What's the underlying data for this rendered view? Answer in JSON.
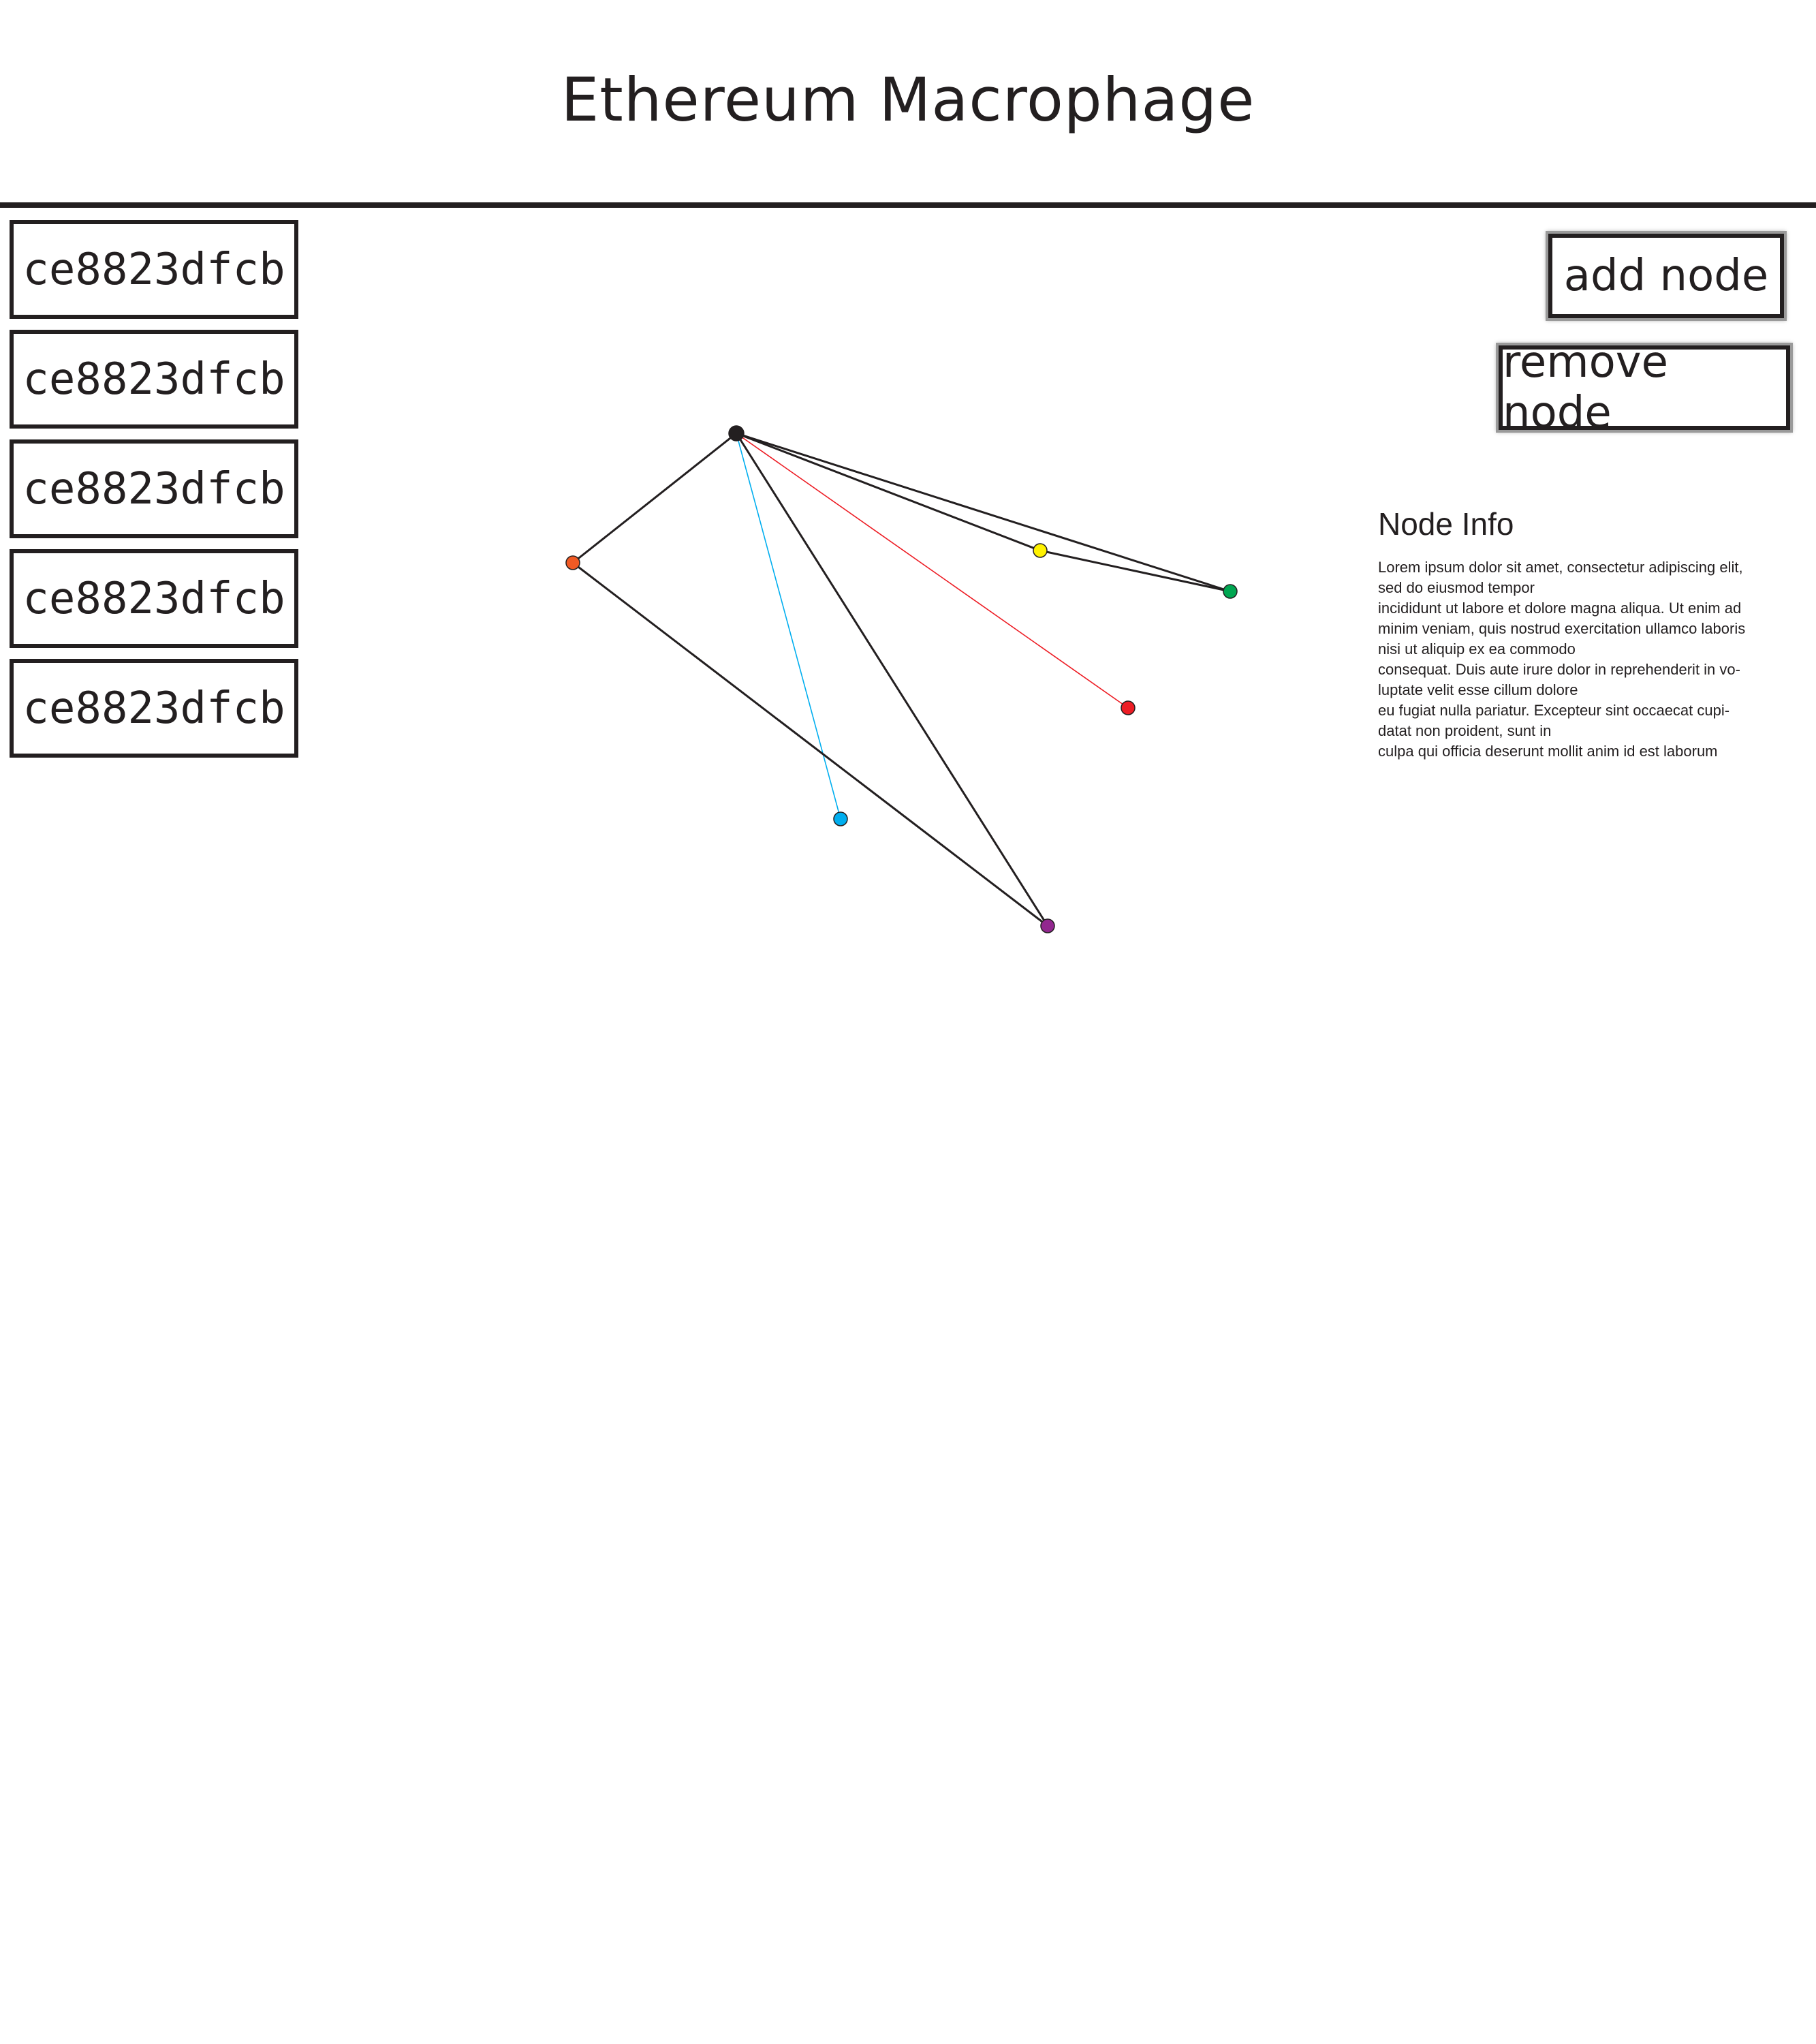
{
  "header": {
    "title": "Ethereum Macrophage"
  },
  "node_list": {
    "items": [
      {
        "label": "ce8823dfcb"
      },
      {
        "label": "ce8823dfcb"
      },
      {
        "label": "ce8823dfcb"
      },
      {
        "label": "ce8823dfcb"
      },
      {
        "label": "ce8823dfcb"
      }
    ]
  },
  "actions": {
    "add_label": "add node",
    "remove_label": "remove node"
  },
  "info": {
    "title": "Node Info",
    "body": "Lorem ipsum dolor sit amet, consectetur adipiscing elit,\nsed do eiusmod tempor\nincididunt ut labore et dolore magna aliqua. Ut enim ad\nminim veniam, quis nostrud exercitation ullamco laboris\nnisi ut aliquip ex ea commodo\nconsequat. Duis aute irure dolor in reprehenderit in vo-\nluptate velit esse cillum dolore\n eu fugiat nulla pariatur. Excepteur sint occaecat cupi-\ndatat non proident, sunt in\nculpa qui officia deserunt mollit anim id est laborum"
  },
  "graph": {
    "nodes": [
      {
        "id": "black",
        "color": "#231f20"
      },
      {
        "id": "orange",
        "color": "#f15a24"
      },
      {
        "id": "yellow",
        "color": "#fff200"
      },
      {
        "id": "green",
        "color": "#00a651"
      },
      {
        "id": "red",
        "color": "#ed1c24"
      },
      {
        "id": "blue",
        "color": "#00aeef"
      },
      {
        "id": "purple",
        "color": "#92278f"
      }
    ],
    "edges": [
      {
        "from": "black",
        "to": "orange",
        "color": "#231f20"
      },
      {
        "from": "black",
        "to": "green",
        "color": "#231f20"
      },
      {
        "from": "black",
        "to": "yellow",
        "color": "#231f20"
      },
      {
        "from": "yellow",
        "to": "green",
        "color": "#231f20"
      },
      {
        "from": "black",
        "to": "red",
        "color": "#ed1c24"
      },
      {
        "from": "black",
        "to": "blue",
        "color": "#00aeef"
      },
      {
        "from": "black",
        "to": "purple",
        "color": "#231f20"
      },
      {
        "from": "orange",
        "to": "purple",
        "color": "#231f20"
      }
    ]
  }
}
